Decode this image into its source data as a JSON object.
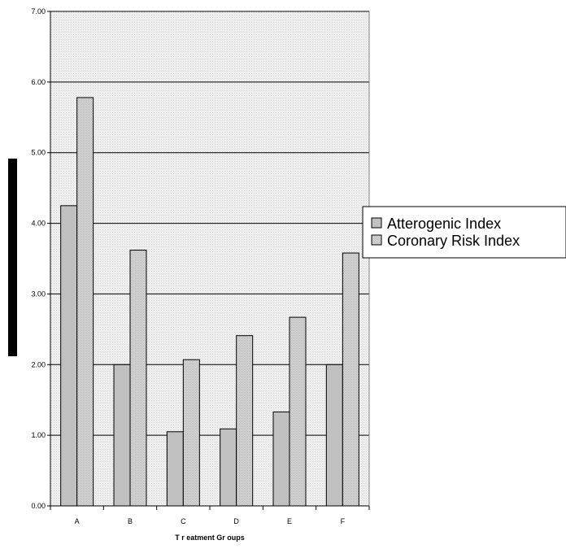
{
  "chart_data": {
    "type": "bar",
    "categories": [
      "A",
      "B",
      "C",
      "D",
      "E",
      "F"
    ],
    "series": [
      {
        "name": "Atterogenic Index",
        "values": [
          4.25,
          2.0,
          1.05,
          1.09,
          1.33,
          2.0
        ]
      },
      {
        "name": "Coronary Risk Index",
        "values": [
          5.78,
          3.62,
          2.07,
          2.41,
          2.67,
          3.58
        ]
      }
    ],
    "ylim": [
      0,
      7
    ],
    "yticks": [
      "0.00",
      "1.00",
      "2.00",
      "3.00",
      "4.00",
      "5.00",
      "6.00",
      "7.00"
    ],
    "xlabel": "T r eatment Gr oups",
    "ylabel": "",
    "grid": true,
    "legend_position": "right",
    "colors": {
      "series1_fill": "#c0c0c0",
      "series2_fill": "#d6d6d6",
      "plot_background": "#e4e4e4",
      "ylabel_bar": "#000000"
    }
  }
}
